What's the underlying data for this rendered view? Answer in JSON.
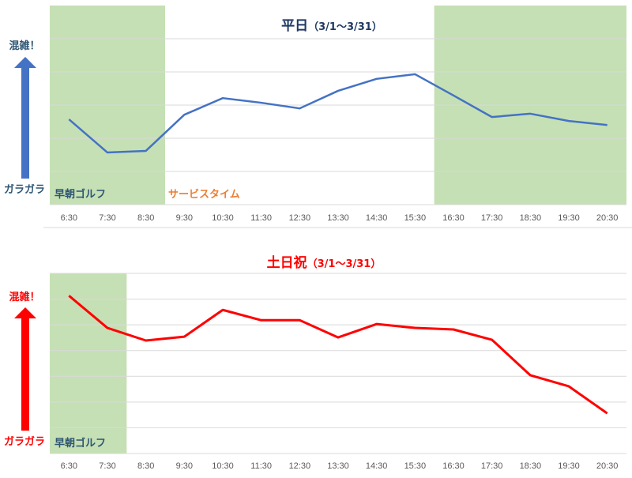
{
  "chart_data": [
    {
      "type": "line",
      "title": "平日",
      "title_period": "（3/1～3/31）",
      "color": "#4472C4",
      "title_color": "#1F3864",
      "categories": [
        "6:30",
        "7:30",
        "8:30",
        "9:30",
        "10:30",
        "11:30",
        "12:30",
        "13:30",
        "14:30",
        "15:30",
        "16:30",
        "17:30",
        "18:30",
        "19:30",
        "20:30"
      ],
      "values": [
        2.57,
        1.57,
        1.62,
        2.71,
        3.21,
        3.07,
        2.9,
        3.43,
        3.79,
        3.93,
        3.29,
        2.64,
        2.74,
        2.52,
        2.4
      ],
      "ylim": [
        0,
        6
      ],
      "grid": true,
      "y_high_label": "混雑！",
      "y_low_label": "ガラガラ",
      "bands": [
        {
          "from": "6:30",
          "to": "8:30",
          "label": "早朝ゴルフ",
          "label_color": "#2E5573"
        },
        {
          "from": "16:30",
          "to": "20:30",
          "label": ""
        }
      ],
      "annotation": {
        "text": "サービスタイム",
        "color": "#ED7D31"
      }
    },
    {
      "type": "line",
      "title": "土日祝",
      "title_period": "（3/1～3/31）",
      "color": "#FF0000",
      "title_color": "#FF0000",
      "categories": [
        "6:30",
        "7:30",
        "8:30",
        "9:30",
        "10:30",
        "11:30",
        "12:30",
        "13:30",
        "14:30",
        "15:30",
        "16:30",
        "17:30",
        "18:30",
        "19:30",
        "20:30"
      ],
      "values": [
        6.13,
        4.88,
        4.39,
        4.54,
        5.58,
        5.18,
        5.18,
        4.51,
        5.03,
        4.88,
        4.82,
        4.42,
        3.04,
        2.61,
        1.56
      ],
      "ylim": [
        0,
        7
      ],
      "grid": true,
      "y_high_label": "混雑！",
      "y_low_label": "ガラガラ",
      "bands": [
        {
          "from": "6:30",
          "to": "7:30",
          "label": "早朝ゴルフ",
          "label_color": "#2E5573"
        }
      ]
    }
  ]
}
